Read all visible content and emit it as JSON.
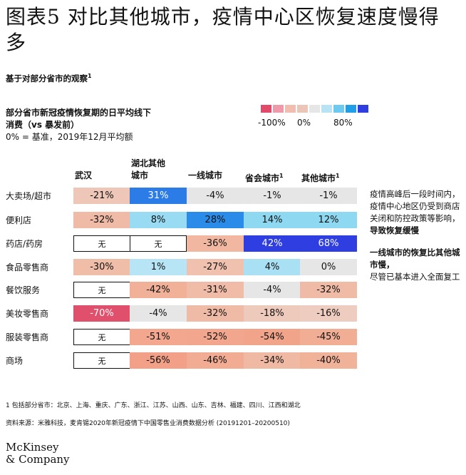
{
  "title": "图表5 对比其他城市，疫情中心区恢复速度慢得多",
  "subtitle": "基于对部分省市的观察",
  "subtitle_sup": "1",
  "description": {
    "line1": "部分省市新冠疫情恢复期的日平均线下",
    "line2": "消费（vs 暴发前）",
    "line3": "0% = 基准，2019年12月平均额"
  },
  "legend": {
    "colors": [
      "#e24a6a",
      "#ee9aa8",
      "#f2bcae",
      "#ebc6b8",
      "#e6e6e6",
      "#b8e3f5",
      "#6ccaf0",
      "#1f9fe8",
      "#2f3ee0"
    ],
    "labels": [
      "-100%",
      "0%",
      "80%"
    ]
  },
  "chart_data": {
    "type": "heatmap",
    "columns": [
      {
        "label": "武汉",
        "sup": ""
      },
      {
        "label": "湖北其他\n城市",
        "sup": ""
      },
      {
        "label": "一线城市",
        "sup": ""
      },
      {
        "label": "省会城市",
        "sup": "1"
      },
      {
        "label": "其他城市",
        "sup": "1"
      }
    ],
    "rows": [
      "大卖场/超市",
      "便利店",
      "药店/药房",
      "食品零售商",
      "餐饮服务",
      "美妆零售商",
      "服装零售商",
      "商场"
    ],
    "na_label": "无",
    "values": [
      [
        -21,
        31,
        -4,
        -1,
        -1
      ],
      [
        -32,
        8,
        28,
        14,
        12
      ],
      [
        null,
        null,
        -36,
        42,
        68
      ],
      [
        -30,
        1,
        -27,
        4,
        0
      ],
      [
        null,
        -42,
        -31,
        -4,
        -32
      ],
      [
        -70,
        -4,
        -32,
        -18,
        -16
      ],
      [
        null,
        -51,
        -52,
        -54,
        -45
      ],
      [
        null,
        -56,
        -46,
        -34,
        -40
      ]
    ],
    "scale": {
      "min": -100,
      "mid": 0,
      "max": 80
    }
  },
  "side_note": {
    "p1_normal": "疫情高峰后一段时间内，疫情中心地区仍受到商店关闭和防控政策等影响，",
    "p1_bold": "导致恢复缓慢",
    "p2_bold": "一线城市的恢复比其他城市慢，",
    "p2_normal": "尽管已基本进入全面复工"
  },
  "footnote": "1 包括部分省市：北京、上海、重庆、广东、浙江、江苏、山西、山东、吉林、福建、四川、江西和湖北",
  "source": "资料来源：米雅科技，麦肯锡2020年新冠疫情下中国零售业消费数据分析 (20191201–20200510)",
  "logo": {
    "line1": "McKinsey",
    "line2": "& Company"
  }
}
